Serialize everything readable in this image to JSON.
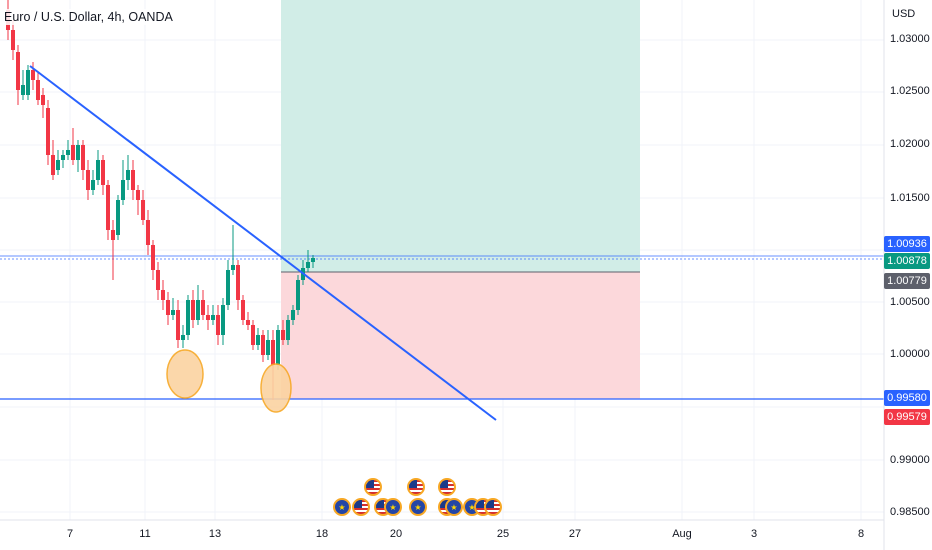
{
  "header": {
    "title": "Euro / U.S. Dollar, 4h, OANDA",
    "currency": "USD"
  },
  "axis": {
    "y_ticks": [
      "1.03000",
      "1.02500",
      "1.02000",
      "1.01500",
      "1.00500",
      "1.00000",
      "0.99000",
      "0.98500"
    ],
    "x_ticks": [
      "7",
      "11",
      "13",
      "18",
      "20",
      "25",
      "27",
      "Aug",
      "3",
      "8"
    ]
  },
  "price_tags": {
    "current": "1.00936",
    "entry_green": "1.00878",
    "entry_grey": "1.00779",
    "support": "0.99580",
    "stop": "0.99579"
  },
  "colors": {
    "up": "#089981",
    "down": "#f23645",
    "trendline": "#2962ff",
    "profit_zone": "#d1ede7",
    "loss_zone": "#fcd8db",
    "highlight": "#f7a825"
  },
  "events": [
    {
      "type": "eu"
    },
    {
      "type": "us"
    },
    {
      "type": "us"
    },
    {
      "type": "us"
    },
    {
      "type": "eu"
    },
    {
      "type": "us"
    },
    {
      "type": "eu"
    },
    {
      "type": "us"
    },
    {
      "type": "us"
    },
    {
      "type": "eu"
    },
    {
      "type": "eu"
    },
    {
      "type": "us"
    },
    {
      "type": "us"
    }
  ]
}
